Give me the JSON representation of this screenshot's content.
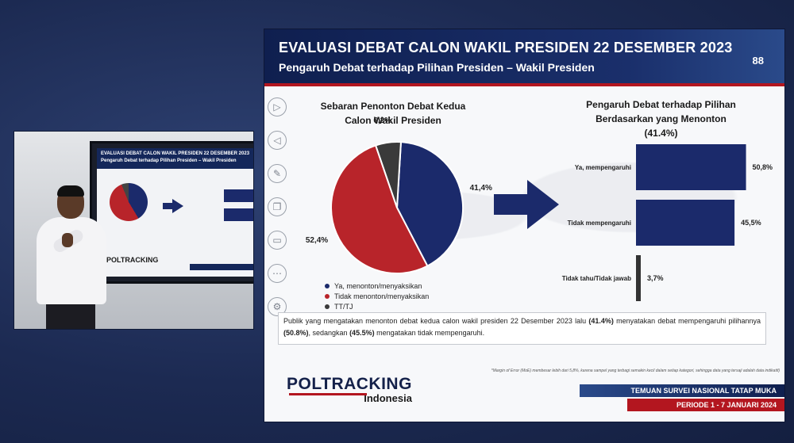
{
  "slide": {
    "title": "EVALUASI DEBAT CALON WAKIL PRESIDEN 22 DESEMBER 2023",
    "subtitle": "Pengaruh Debat terhadap Pilihan Presiden – Wakil Presiden",
    "page_number": "88"
  },
  "side_icons": [
    {
      "name": "play-icon",
      "glyph": "▷"
    },
    {
      "name": "back-icon",
      "glyph": "◁"
    },
    {
      "name": "pen-icon",
      "glyph": "✎"
    },
    {
      "name": "slides-icon",
      "glyph": "❐"
    },
    {
      "name": "monitor-icon",
      "glyph": "▭"
    },
    {
      "name": "more-icon",
      "glyph": "⋯"
    },
    {
      "name": "settings-icon",
      "glyph": "⚙"
    }
  ],
  "chart_data": [
    {
      "type": "pie",
      "title": "Sebaran Penonton Debat Kedua Calon Wakil Presiden",
      "categories": [
        "Ya, menonton/menyaksikan",
        "Tidak menonton/menyaksikan",
        "TT/TJ"
      ],
      "values": [
        41.4,
        52.4,
        6.2
      ],
      "labels": [
        "41,4%",
        "52,4%",
        "6,2%"
      ],
      "colors": [
        "#1b2a6b",
        "#b8242a",
        "#3a3a3a"
      ],
      "legend": "bottom"
    },
    {
      "type": "bar",
      "orientation": "horizontal",
      "title": "Pengaruh Debat terhadap Pilihan Berdasarkan yang Menonton",
      "subtitle": "(41.4%)",
      "categories": [
        "Ya, mempengaruhi",
        "Tidak mempengaruhi",
        "Tidak tahu/Tidak jawab"
      ],
      "values": [
        50.8,
        45.5,
        3.7
      ],
      "labels": [
        "50,8%",
        "45,5%",
        "3,7%"
      ],
      "colors": [
        "#1b2a6b",
        "#1b2a6b",
        "#333333"
      ]
    }
  ],
  "note": {
    "p1": "Publik yang mengatakan menonton debat kedua calon wakil presiden 22 Desember 2023 lalu ",
    "b1": "(41.4%)",
    "p2": " menyatakan debat mempengaruhi pilihannya ",
    "b2": "(50.8%)",
    "p3": ", sedangkan ",
    "b3": "(45.5%)",
    "p4": " mengatakan tidak mempengaruhi."
  },
  "footnote": "*Margin of Error (MoE) membesar lebih dari 5,8%, karena sampel yang terbagi semakin kecil dalam setiap kategori, sehingga data yang tersaji adalah data indikatif)",
  "logo": {
    "main": "POLTRACKING",
    "sub": "Indonesia"
  },
  "footer": {
    "line1": "TEMUAN SURVEI NASIONAL TATAP MUKA",
    "line2": "PERIODE 1 - 7 JANUARI 2024"
  },
  "inset": {
    "tv_title": "EVALUASI DEBAT CALON WAKIL PRESIDEN 22 DESEMBER 2023",
    "tv_subtitle": "Pengaruh Debat terhadap Pilihan Presiden – Wakil Presiden",
    "tv_logo": "POLTRACKING"
  },
  "colors": {
    "navy": "#14214a",
    "red": "#b3161f",
    "bar": "#1b2a6b"
  }
}
